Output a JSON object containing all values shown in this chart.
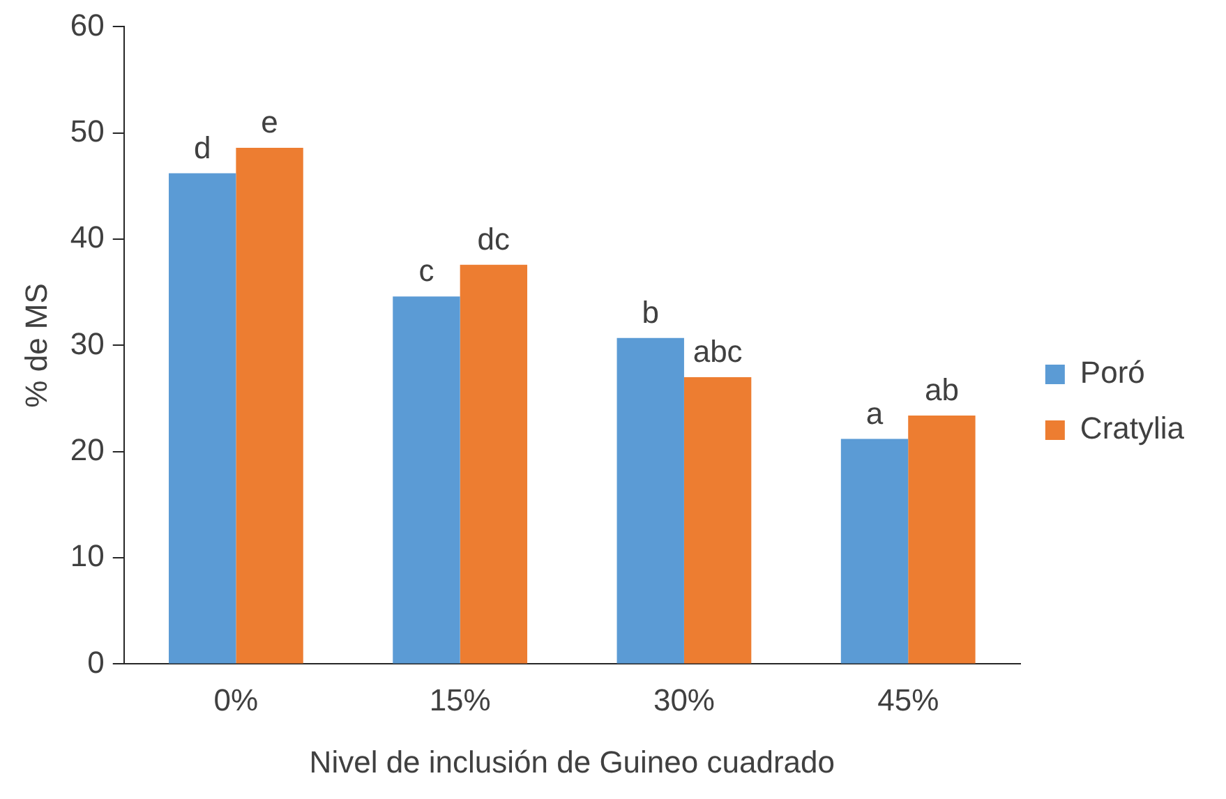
{
  "chart_data": {
    "type": "bar",
    "xlabel": "Nivel de inclusión de Guineo cuadrado",
    "ylabel": "% de MS",
    "categories": [
      "0%",
      "15%",
      "30%",
      "45%"
    ],
    "series": [
      {
        "name": "Poró",
        "color": "#5b9bd5",
        "values": [
          46.2,
          34.6,
          30.7,
          21.2
        ],
        "value_labels": [
          "d",
          "c",
          "b",
          "a"
        ]
      },
      {
        "name": "Cratylia",
        "color": "#ed7d31",
        "values": [
          48.6,
          37.6,
          27.0,
          23.4
        ],
        "value_labels": [
          "e",
          "dc",
          "abc",
          "ab"
        ]
      }
    ],
    "ylim": [
      0,
      60
    ],
    "yticks": [
      0,
      10,
      20,
      30,
      40,
      50,
      60
    ],
    "grid": false,
    "legend": "right"
  }
}
